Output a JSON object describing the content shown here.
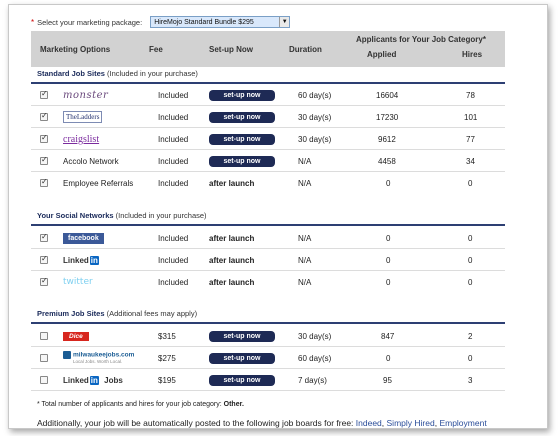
{
  "package": {
    "required_mark": "*",
    "label": "Select your marketing package:",
    "selected": "HireMojo Standard Bundle $295"
  },
  "header": {
    "marketing_options": "Marketing Options",
    "fee": "Fee",
    "setup_now": "Set-up Now",
    "duration": "Duration",
    "applicants_title": "Applicants for Your Job Category*",
    "applied": "Applied",
    "hires": "Hires"
  },
  "sections": {
    "standard": {
      "title": "Standard Job Sites",
      "note": "(Included in your purchase)"
    },
    "social": {
      "title": "Your Social Networks",
      "note": "(Included in your purchase)"
    },
    "premium": {
      "title": "Premium Job Sites",
      "note": "(Additional fees may apply)"
    }
  },
  "rows": {
    "monster": {
      "logo": "monster",
      "checked": true,
      "fee": "Included",
      "setup": "set-up now",
      "duration": "60 day(s)",
      "applied": "16604",
      "hires": "78"
    },
    "ladders": {
      "logo": "TheLadders",
      "checked": true,
      "fee": "Included",
      "setup": "set-up now",
      "duration": "30 day(s)",
      "applied": "17230",
      "hires": "101"
    },
    "craigslist": {
      "logo": "craigslist",
      "checked": true,
      "fee": "Included",
      "setup": "set-up now",
      "duration": "30 day(s)",
      "applied": "9612",
      "hires": "77"
    },
    "accolo": {
      "name": "Accolo Network",
      "checked": true,
      "fee": "Included",
      "setup": "set-up now",
      "duration": "N/A",
      "applied": "4458",
      "hires": "34"
    },
    "referrals": {
      "name": "Employee Referrals",
      "checked": true,
      "fee": "Included",
      "setup": "after launch",
      "duration": "N/A",
      "applied": "0",
      "hires": "0"
    },
    "facebook": {
      "logo": "facebook",
      "checked": true,
      "fee": "Included",
      "setup": "after launch",
      "duration": "N/A",
      "applied": "0",
      "hires": "0"
    },
    "linkedin": {
      "logo_text": "Linked",
      "logo_in": "in",
      "checked": true,
      "fee": "Included",
      "setup": "after launch",
      "duration": "N/A",
      "applied": "0",
      "hires": "0"
    },
    "twitter": {
      "logo": "twitter",
      "checked": true,
      "fee": "Included",
      "setup": "after launch",
      "duration": "N/A",
      "applied": "0",
      "hires": "0"
    },
    "dice": {
      "logo": "Dice",
      "checked": false,
      "fee": "$315",
      "setup": "set-up now",
      "duration": "30 day(s)",
      "applied": "847",
      "hires": "2"
    },
    "milwaukee": {
      "logo": "milwaukeejobs.com",
      "logo_sub": "Local Jobs. Worth Local.",
      "checked": false,
      "fee": "$275",
      "setup": "set-up now",
      "duration": "60 day(s)",
      "applied": "0",
      "hires": "0"
    },
    "linkedin_jobs": {
      "logo_text": "Linked",
      "logo_in": "in",
      "logo_suffix": "Jobs",
      "checked": false,
      "fee": "$195",
      "setup": "set-up now",
      "duration": "7 day(s)",
      "applied": "95",
      "hires": "3"
    }
  },
  "footnote": {
    "text": "* Total number of applicants and hires for your job category:",
    "category": "Other."
  },
  "additional": {
    "text": "Additionally, your job will be automatically posted to the following job boards for free:",
    "links": [
      "Indeed",
      "Simply Hired",
      "Employment"
    ]
  }
}
